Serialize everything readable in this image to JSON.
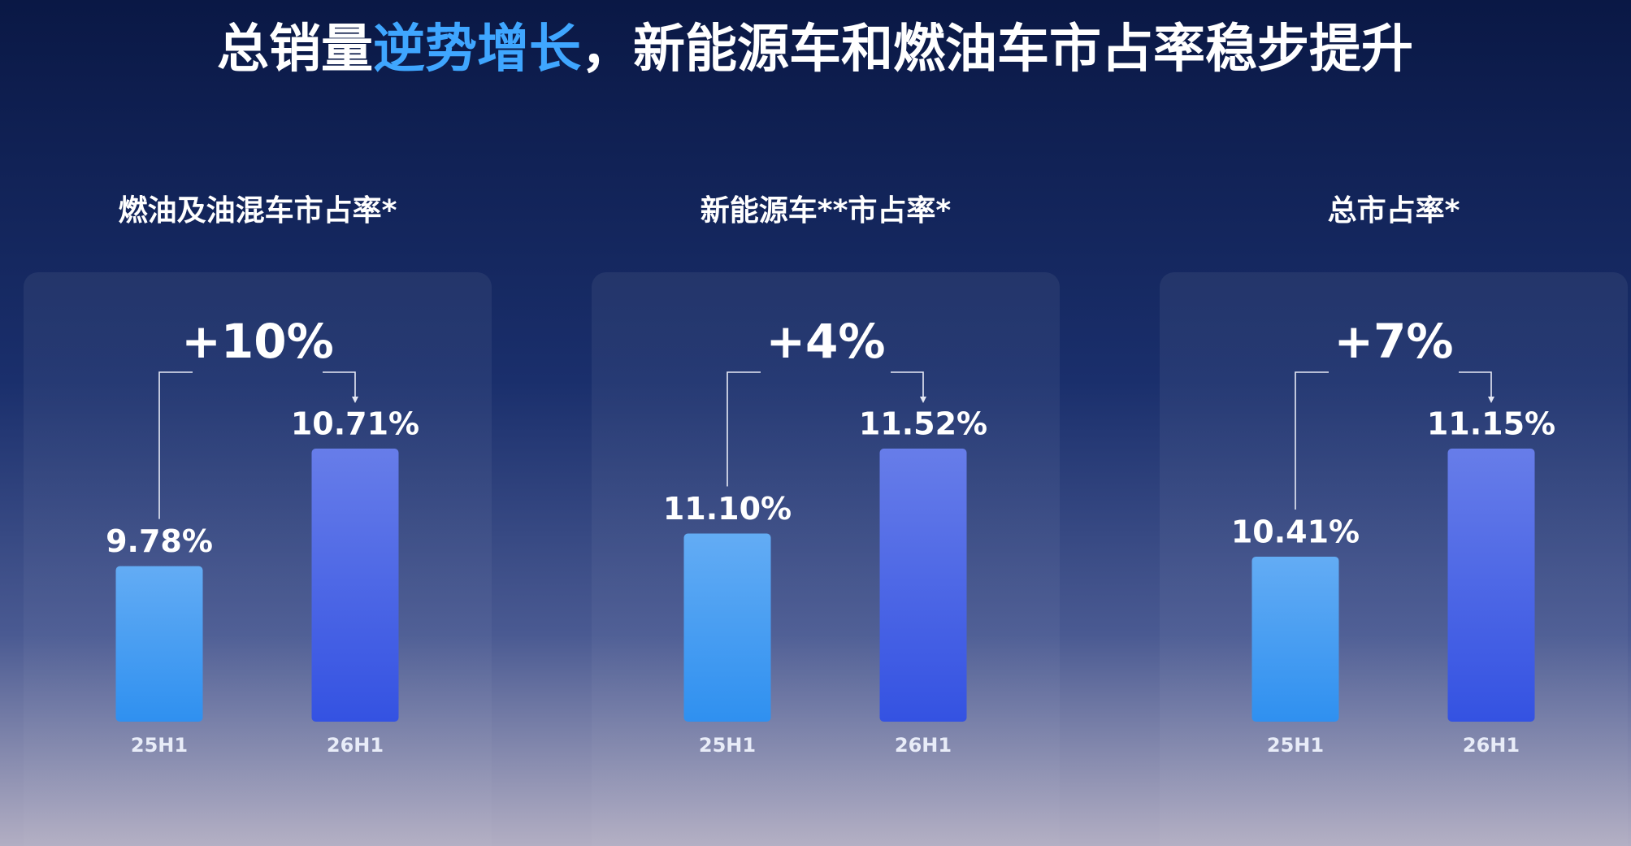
{
  "title_parts": [
    "总销量",
    "逆势增长",
    "，新能源车和燃油车市占率稳步提升"
  ],
  "chart_data": [
    {
      "type": "bar",
      "title": "燃油及油混车市占率*",
      "annotation": "+10%",
      "categories": [
        "25H1",
        "26H1"
      ],
      "values": [
        9.78,
        10.71
      ],
      "value_labels": [
        "9.78%",
        "10.71%"
      ],
      "colors": [
        "#2f90f0",
        "#3452e2"
      ],
      "ylim": [
        8.55,
        10.71
      ]
    },
    {
      "type": "bar",
      "title": "新能源车**市占率*",
      "annotation": "+4%",
      "categories": [
        "25H1",
        "26H1"
      ],
      "values": [
        11.1,
        11.52
      ],
      "value_labels": [
        "11.10%",
        "11.52%"
      ],
      "colors": [
        "#2f90f0",
        "#3452e2"
      ],
      "ylim": [
        10.17,
        11.52
      ]
    },
    {
      "type": "bar",
      "title": "总市占率*",
      "annotation": "+7%",
      "categories": [
        "25H1",
        "26H1"
      ],
      "values": [
        10.41,
        11.15
      ],
      "value_labels": [
        "10.41%",
        "11.15%"
      ],
      "colors": [
        "#2f90f0",
        "#3452e2"
      ],
      "ylim": [
        9.28,
        11.15
      ]
    }
  ]
}
